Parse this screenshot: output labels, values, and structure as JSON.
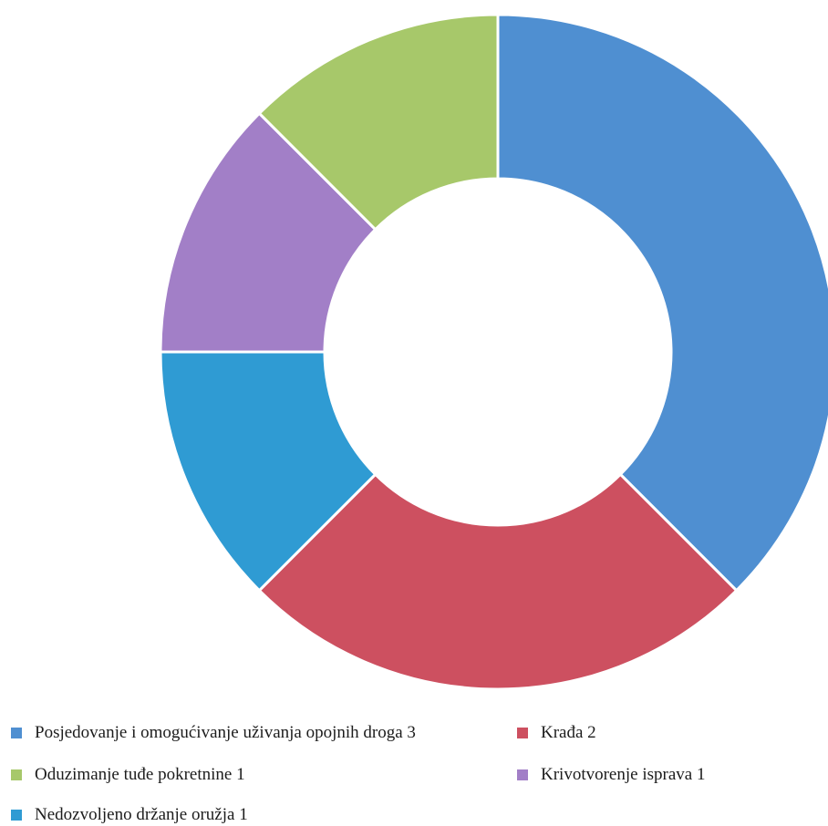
{
  "chart_data": {
    "type": "pie",
    "donut": true,
    "start_angle_deg": 0,
    "direction": "clockwise",
    "title": "",
    "legend_position": "bottom",
    "slices": [
      {
        "label": "Posjedovanje i omogućivanje uživanja opojnih droga 3",
        "category": "Posjedovanje i omogućivanje uživanja opojnih droga",
        "value": 3,
        "color": "#4f8fd1"
      },
      {
        "label": "Krađa 2",
        "category": "Krađa",
        "value": 2,
        "color": "#cd5060"
      },
      {
        "label": "Nedozvoljeno držanje oružja 1",
        "category": "Nedozvoljeno držanje oružja",
        "value": 1,
        "color": "#2f9bd3"
      },
      {
        "label": "Krivotvorenje isprava 1",
        "category": "Krivotvorenje isprava",
        "value": 1,
        "color": "#a27fc7"
      },
      {
        "label": "Oduzimanje tuđe pokretnine 1",
        "category": "Oduzimanje tuđe pokretnine",
        "value": 1,
        "color": "#a7c86a"
      }
    ]
  },
  "legend": [
    {
      "label": "Posjedovanje i omogućivanje uživanja opojnih droga 3",
      "color": "#4f8fd1"
    },
    {
      "label": "Krađa 2",
      "color": "#cd5060"
    },
    {
      "label": "Oduzimanje tuđe pokretnine 1",
      "color": "#a7c86a"
    },
    {
      "label": "Krivotvorenje isprava 1",
      "color": "#a27fc7"
    },
    {
      "label": "Nedozvoljeno držanje oružja 1",
      "color": "#2f9bd3"
    }
  ]
}
